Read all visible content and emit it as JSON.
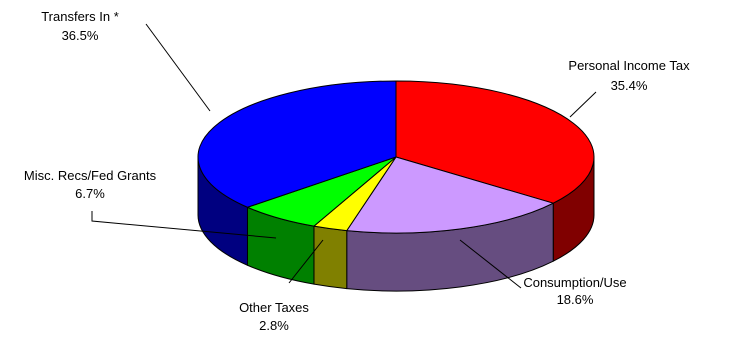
{
  "chart_data": {
    "type": "pie",
    "title": "",
    "slices": [
      {
        "label": "Personal Income Tax",
        "value": 35.4,
        "value_text": "35.4%",
        "color": "#ff0000",
        "side_color": "#800000"
      },
      {
        "label": "Consumption/Use",
        "value": 18.6,
        "value_text": "18.6%",
        "color": "#cc99ff",
        "side_color": "#664d80"
      },
      {
        "label": "Other Taxes",
        "value": 2.8,
        "value_text": "2.8%",
        "color": "#ffff00",
        "side_color": "#808000"
      },
      {
        "label": "Misc. Recs/Fed Grants",
        "value": 6.7,
        "value_text": "6.7%",
        "color": "#00ff00",
        "side_color": "#008000"
      },
      {
        "label": "Transfers In *",
        "value": 36.5,
        "value_text": "36.5%",
        "color": "#0000ff",
        "side_color": "#000080"
      }
    ],
    "legend": "none"
  }
}
